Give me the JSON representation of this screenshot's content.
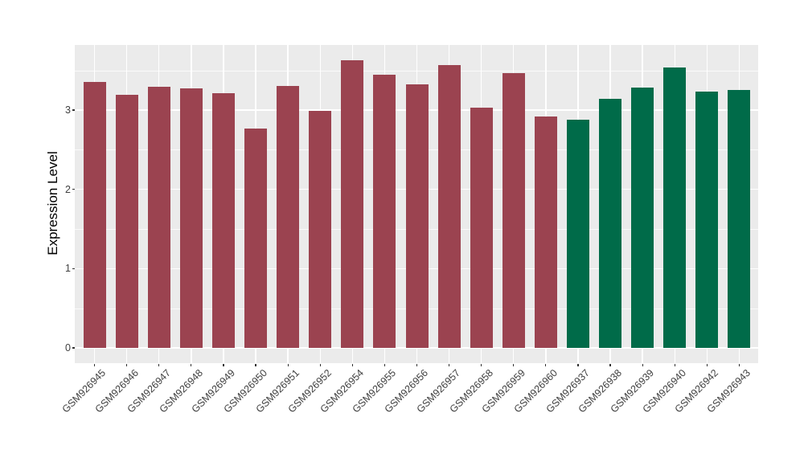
{
  "chart_data": {
    "type": "bar",
    "title": "",
    "xlabel": "",
    "ylabel": "Expression Level",
    "categories": [
      "GSM926945",
      "GSM926946",
      "GSM926947",
      "GSM926948",
      "GSM926949",
      "GSM926950",
      "GSM926951",
      "GSM926952",
      "GSM926954",
      "GSM926955",
      "GSM926956",
      "GSM926957",
      "GSM926958",
      "GSM926959",
      "GSM926960",
      "GSM926937",
      "GSM926938",
      "GSM926939",
      "GSM926940",
      "GSM926942",
      "GSM926943"
    ],
    "values": [
      3.36,
      3.19,
      3.29,
      3.27,
      3.21,
      2.77,
      3.3,
      2.99,
      3.63,
      3.45,
      3.32,
      3.57,
      3.03,
      3.47,
      2.92,
      2.88,
      3.14,
      3.28,
      3.54,
      3.23,
      3.25
    ],
    "colors": [
      "#9B4350",
      "#9B4350",
      "#9B4350",
      "#9B4350",
      "#9B4350",
      "#9B4350",
      "#9B4350",
      "#9B4350",
      "#9B4350",
      "#9B4350",
      "#9B4350",
      "#9B4350",
      "#9B4350",
      "#9B4350",
      "#9B4350",
      "#006B49",
      "#006B49",
      "#006B49",
      "#006B49",
      "#006B49",
      "#006B49"
    ],
    "group_colors": {
      "left_group_hex": "#9B4350",
      "right_group_hex": "#006B49"
    },
    "y_ticks": [
      0,
      1,
      2,
      3
    ],
    "y_minor_ticks": [
      0.5,
      1.5,
      2.5,
      3.5
    ],
    "ylim": [
      -0.19,
      3.82
    ],
    "x_tick_label_rotation_deg": 45,
    "grid": "major and minor horizontal + major vertical, white lines",
    "legend_position": "none",
    "panel_background": "#EBEBEB",
    "gridline_color": "#FFFFFF",
    "tick_label_color": "#404040",
    "axis_title_color": "#000000"
  }
}
